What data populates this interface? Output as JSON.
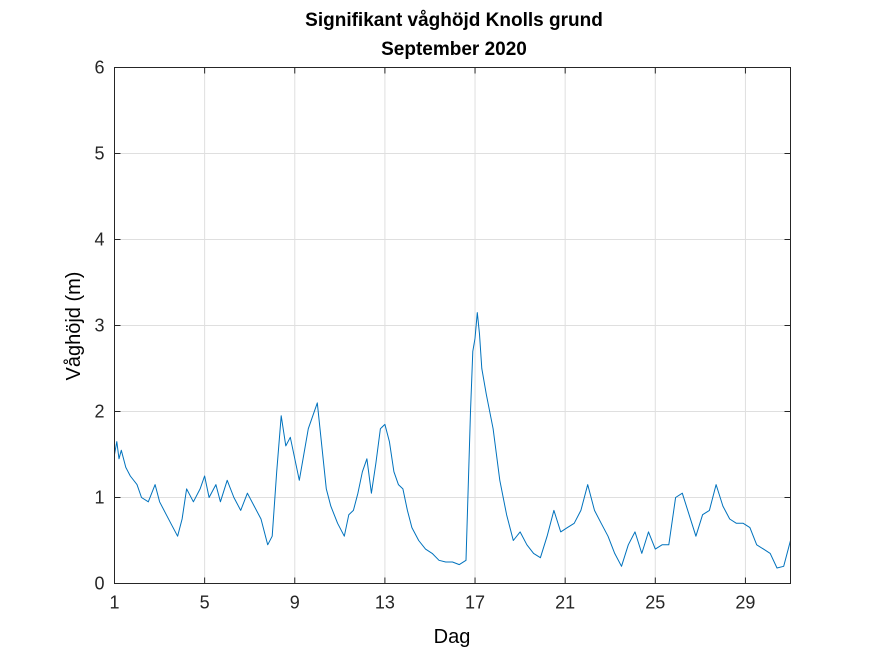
{
  "chart_data": {
    "type": "line",
    "title": "Signifikant våghöjd Knolls grund",
    "subtitle": "September 2020",
    "xlabel": "Dag",
    "ylabel": "Våghöjd (m)",
    "xlim": [
      1,
      31
    ],
    "ylim": [
      0,
      6
    ],
    "xticks": [
      1,
      5,
      9,
      13,
      17,
      21,
      25,
      29
    ],
    "yticks": [
      0,
      1,
      2,
      3,
      4,
      5,
      6
    ],
    "grid": true,
    "line_color": "#0072bd",
    "series": [
      {
        "x": [
          1.0,
          1.1,
          1.2,
          1.3,
          1.5,
          1.7,
          2.0,
          2.2,
          2.5,
          2.8,
          3.0,
          3.3,
          3.5,
          3.8,
          4.0,
          4.2,
          4.5,
          4.8,
          5.0,
          5.2,
          5.5,
          5.7,
          6.0,
          6.3,
          6.6,
          6.9,
          7.2,
          7.5,
          7.8,
          8.0,
          8.2,
          8.4,
          8.6,
          8.8,
          9.0,
          9.2,
          9.4,
          9.6,
          9.8,
          10.0,
          10.2,
          10.4,
          10.6,
          10.9,
          11.2,
          11.4,
          11.6,
          11.8,
          12.0,
          12.2,
          12.4,
          12.6,
          12.8,
          13.0,
          13.2,
          13.4,
          13.6,
          13.8,
          14.0,
          14.2,
          14.5,
          14.8,
          15.1,
          15.4,
          15.7,
          16.0,
          16.3,
          16.6,
          16.8,
          16.9,
          17.0,
          17.1,
          17.2,
          17.3,
          17.5,
          17.8,
          18.1,
          18.4,
          18.7,
          19.0,
          19.3,
          19.6,
          19.9,
          20.2,
          20.5,
          20.8,
          21.1,
          21.4,
          21.7,
          22.0,
          22.3,
          22.6,
          22.9,
          23.2,
          23.5,
          23.8,
          24.1,
          24.4,
          24.7,
          25.0,
          25.3,
          25.6,
          25.9,
          26.2,
          26.5,
          26.8,
          27.1,
          27.4,
          27.7,
          28.0,
          28.3,
          28.6,
          28.9,
          29.2,
          29.5,
          29.8,
          30.1,
          30.4,
          30.7,
          31.0
        ],
        "y": [
          1.5,
          1.65,
          1.45,
          1.55,
          1.35,
          1.25,
          1.15,
          1.0,
          0.95,
          1.15,
          0.95,
          0.8,
          0.7,
          0.55,
          0.75,
          1.1,
          0.95,
          1.1,
          1.25,
          1.0,
          1.15,
          0.95,
          1.2,
          1.0,
          0.85,
          1.05,
          0.9,
          0.75,
          0.45,
          0.55,
          1.3,
          1.95,
          1.6,
          1.7,
          1.45,
          1.2,
          1.5,
          1.8,
          1.95,
          2.1,
          1.6,
          1.1,
          0.9,
          0.7,
          0.55,
          0.8,
          0.85,
          1.05,
          1.3,
          1.45,
          1.05,
          1.4,
          1.8,
          1.85,
          1.65,
          1.3,
          1.15,
          1.1,
          0.85,
          0.65,
          0.5,
          0.4,
          0.35,
          0.27,
          0.25,
          0.25,
          0.22,
          0.27,
          2.0,
          2.7,
          2.85,
          3.15,
          2.9,
          2.5,
          2.2,
          1.8,
          1.2,
          0.8,
          0.5,
          0.6,
          0.45,
          0.35,
          0.3,
          0.55,
          0.85,
          0.6,
          0.65,
          0.7,
          0.85,
          1.15,
          0.85,
          0.7,
          0.55,
          0.35,
          0.2,
          0.45,
          0.6,
          0.35,
          0.6,
          0.4,
          0.45,
          0.45,
          1.0,
          1.05,
          0.8,
          0.55,
          0.8,
          0.85,
          1.15,
          0.9,
          0.75,
          0.7,
          0.7,
          0.65,
          0.45,
          0.4,
          0.35,
          0.18,
          0.2,
          0.5
        ]
      }
    ]
  }
}
